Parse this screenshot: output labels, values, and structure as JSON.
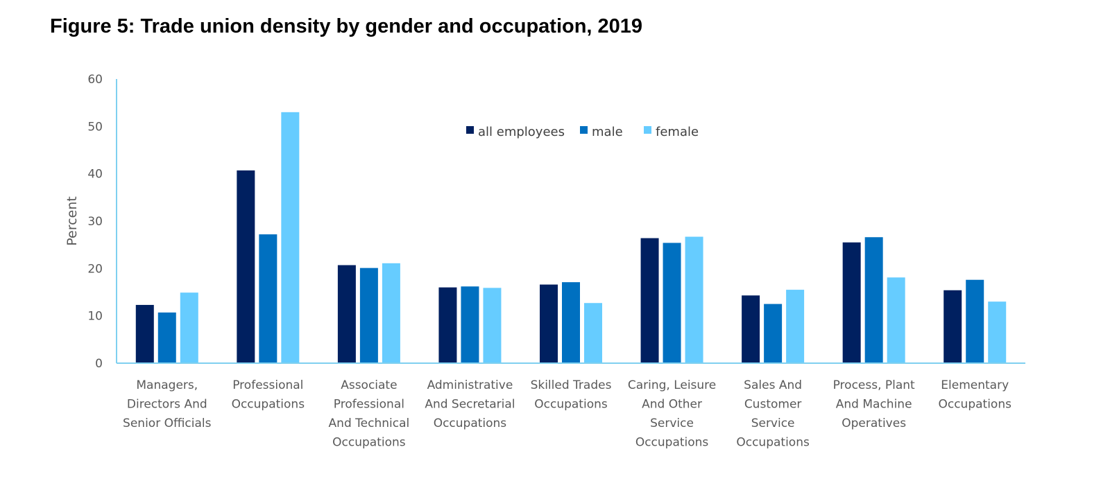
{
  "title": "Figure 5: Trade union density by gender and occupation, 2019",
  "chart_data": {
    "type": "bar",
    "title": "Figure 5: Trade union density by gender and occupation, 2019",
    "xlabel": "",
    "ylabel": "Percent",
    "ylim": [
      0,
      60
    ],
    "yticks": [
      0,
      10,
      20,
      30,
      40,
      50,
      60
    ],
    "grid": false,
    "legend_position": "top-center",
    "categories": [
      [
        "Managers,",
        "Directors And",
        "Senior Officials"
      ],
      [
        "Professional",
        "Occupations"
      ],
      [
        "Associate",
        "Professional",
        "And Technical",
        "Occupations"
      ],
      [
        "Administrative",
        "And Secretarial",
        "Occupations"
      ],
      [
        "Skilled Trades",
        "Occupations"
      ],
      [
        "Caring, Leisure",
        "And Other",
        "Service",
        "Occupations"
      ],
      [
        "Sales And",
        "Customer",
        "Service",
        "Occupations"
      ],
      [
        "Process, Plant",
        "And Machine",
        "Operatives"
      ],
      [
        "Elementary",
        "Occupations"
      ]
    ],
    "series": [
      {
        "name": "all employees",
        "color": "#002060",
        "values": [
          12.3,
          40.7,
          20.7,
          16.0,
          16.6,
          26.4,
          14.3,
          25.5,
          15.4
        ]
      },
      {
        "name": "male",
        "color": "#0070C0",
        "values": [
          10.7,
          27.2,
          20.1,
          16.2,
          17.1,
          25.4,
          12.5,
          26.6,
          17.6
        ]
      },
      {
        "name": "female",
        "color": "#66CCFF",
        "values": [
          14.9,
          53.0,
          21.1,
          15.9,
          12.7,
          26.7,
          15.5,
          18.1,
          13.0
        ]
      }
    ],
    "axis_color": "#7FD0F0"
  }
}
